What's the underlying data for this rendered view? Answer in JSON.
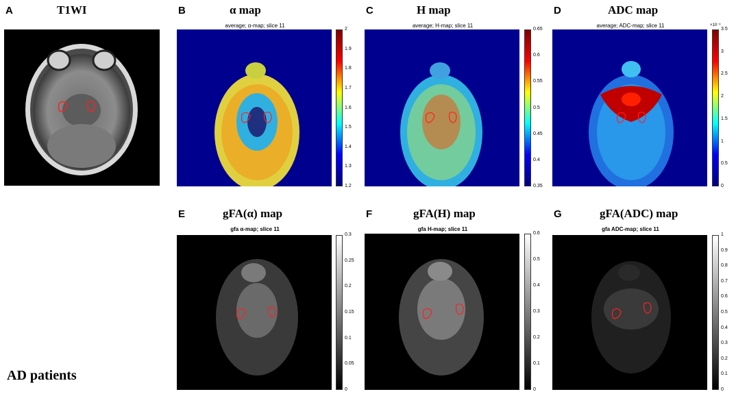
{
  "panels": {
    "A": {
      "letter": "A",
      "title": "T1WI"
    },
    "B": {
      "letter": "B",
      "title": "α map",
      "subtitle": "average; α-map; slice 11",
      "ticks": [
        "2",
        "1.9",
        "1.8",
        "1.7",
        "1.6",
        "1.5",
        "1.4",
        "1.3",
        "1.2"
      ]
    },
    "C": {
      "letter": "C",
      "title": "H map",
      "subtitle": "average; H-map; slice 11",
      "ticks": [
        "0.65",
        "0.6",
        "0.55",
        "0.5",
        "0.45",
        "0.4",
        "0.35"
      ]
    },
    "D": {
      "letter": "D",
      "title": "ADC map",
      "subtitle": "average; ADC-map; slice 11",
      "ticks": [
        "3.5",
        "3",
        "2.5",
        "2",
        "1.5",
        "1",
        "0.5",
        "0"
      ],
      "exponent": "×10⁻³"
    },
    "E": {
      "letter": "E",
      "title": "gFA(α) map",
      "subtitle": "gfa α-map; slice 11",
      "ticks": [
        "0.3",
        "0.25",
        "0.2",
        "0.15",
        "0.1",
        "0.05",
        "0"
      ]
    },
    "F": {
      "letter": "F",
      "title": "gFA(H) map",
      "subtitle": "gfa H-map; slice 11",
      "ticks": [
        "0.6",
        "0.5",
        "0.4",
        "0.3",
        "0.2",
        "0.1",
        "0"
      ]
    },
    "G": {
      "letter": "G",
      "title": "gFA(ADC) map",
      "subtitle": "gfa ADC-map; slice 11",
      "ticks": [
        "1",
        "0.9",
        "0.8",
        "0.7",
        "0.6",
        "0.5",
        "0.4",
        "0.3",
        "0.2",
        "0.1",
        "0"
      ]
    }
  },
  "footer": "AD patients",
  "colors": {
    "jet_background": "#00008f",
    "roi_outline": "#ff2020",
    "gfa_background": "#000000"
  }
}
